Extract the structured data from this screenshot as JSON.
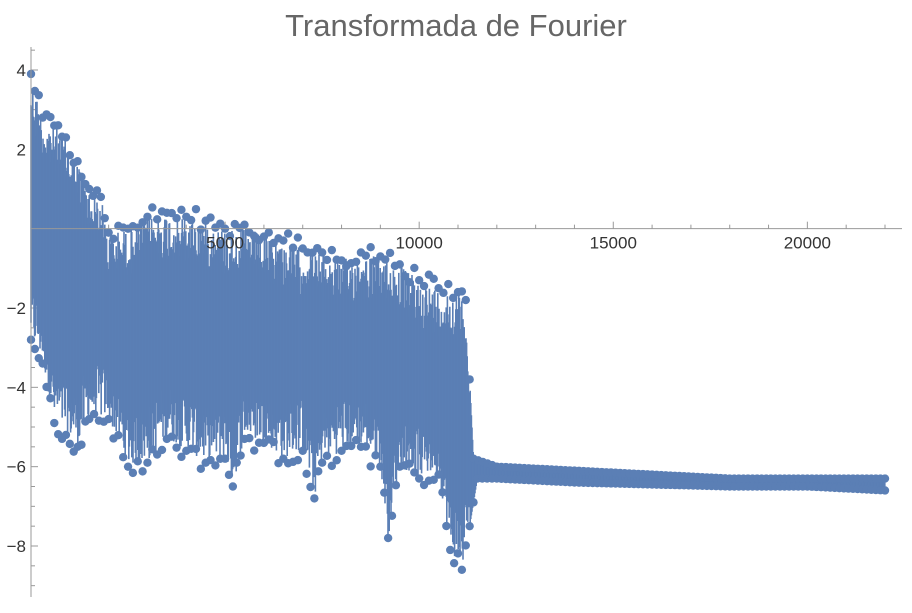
{
  "chart_data": {
    "type": "line",
    "title": "Transformada de Fourier",
    "xlabel": "",
    "ylabel": "",
    "xlim": [
      0,
      22050
    ],
    "ylim": [
      -9.2,
      4.6
    ],
    "x_ticks": [
      5000,
      10000,
      15000,
      20000
    ],
    "x_tick_labels": [
      "5000",
      "10000",
      "15000",
      "20000"
    ],
    "y_ticks": [
      4,
      2,
      -2,
      -4,
      -6,
      -8
    ],
    "y_tick_labels": [
      "4",
      "2",
      "−2",
      "−4",
      "−6",
      "−8"
    ],
    "grid": false,
    "legend": "none",
    "series": [
      {
        "color": "#5b7fb5",
        "style": "stems with point markers",
        "upper_envelope": [
          [
            0,
            3.9
          ],
          [
            300,
            2.8
          ],
          [
            600,
            2.6
          ],
          [
            900,
            2.3
          ],
          [
            1200,
            1.7
          ],
          [
            1500,
            1.0
          ],
          [
            1800,
            0.8
          ],
          [
            2000,
            -0.1
          ],
          [
            2500,
            0.0
          ],
          [
            3000,
            0.3
          ],
          [
            3500,
            0.4
          ],
          [
            4000,
            0.3
          ],
          [
            4500,
            0.2
          ],
          [
            5000,
            0.0
          ],
          [
            5500,
            0.1
          ],
          [
            6000,
            -0.2
          ],
          [
            6500,
            -0.3
          ],
          [
            7000,
            -0.5
          ],
          [
            7500,
            -0.6
          ],
          [
            8000,
            -0.8
          ],
          [
            8500,
            -0.6
          ],
          [
            9000,
            -0.7
          ],
          [
            9500,
            -0.9
          ],
          [
            10000,
            -1.3
          ],
          [
            10500,
            -1.5
          ],
          [
            11000,
            -1.6
          ],
          [
            11200,
            -1.8
          ],
          [
            11400,
            -5.8
          ],
          [
            12000,
            -6.0
          ],
          [
            14000,
            -6.1
          ],
          [
            16000,
            -6.2
          ],
          [
            18000,
            -6.3
          ],
          [
            20000,
            -6.3
          ],
          [
            22000,
            -6.3
          ]
        ],
        "lower_envelope": [
          [
            0,
            -2.8
          ],
          [
            300,
            -3.4
          ],
          [
            600,
            -4.9
          ],
          [
            900,
            -5.2
          ],
          [
            1200,
            -5.5
          ],
          [
            1500,
            -4.8
          ],
          [
            2000,
            -4.8
          ],
          [
            2500,
            -6.0
          ],
          [
            3000,
            -5.9
          ],
          [
            3500,
            -5.3
          ],
          [
            4000,
            -5.6
          ],
          [
            4500,
            -5.9
          ],
          [
            5000,
            -5.8
          ],
          [
            5200,
            -6.5
          ],
          [
            5500,
            -5.3
          ],
          [
            6000,
            -5.4
          ],
          [
            6500,
            -5.8
          ],
          [
            7000,
            -5.6
          ],
          [
            7300,
            -6.8
          ],
          [
            7500,
            -5.9
          ],
          [
            8000,
            -5.6
          ],
          [
            8500,
            -5.5
          ],
          [
            9000,
            -6.0
          ],
          [
            9200,
            -7.8
          ],
          [
            9500,
            -6.0
          ],
          [
            10000,
            -6.3
          ],
          [
            10500,
            -6.2
          ],
          [
            10800,
            -8.1
          ],
          [
            11100,
            -8.6
          ],
          [
            11300,
            -7.5
          ],
          [
            11500,
            -6.3
          ],
          [
            12000,
            -6.3
          ],
          [
            14000,
            -6.4
          ],
          [
            16000,
            -6.45
          ],
          [
            18000,
            -6.5
          ],
          [
            20000,
            -6.5
          ],
          [
            22000,
            -6.6
          ]
        ]
      }
    ]
  }
}
